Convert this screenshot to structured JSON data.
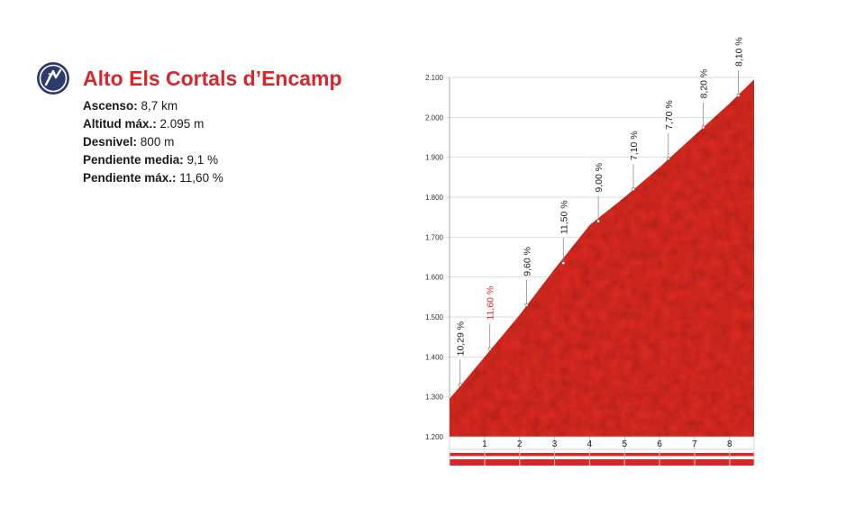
{
  "header": {
    "logo_icon": "cycling-category-badge-icon",
    "title": "Alto Els Cortals d’Encamp"
  },
  "stats": [
    {
      "label": "Ascenso:",
      "value": "8,7 km"
    },
    {
      "label": "Altitud máx.:",
      "value": "2.095 m"
    },
    {
      "label": "Desnivel:",
      "value": "800 m"
    },
    {
      "label": "Pendiente media:",
      "value": "9,1 %"
    },
    {
      "label": "Pendiente máx.:",
      "value": "11,60 %"
    }
  ],
  "colors": {
    "profile_fill": "#d42b22",
    "profile_dark": "#b81d17",
    "title": "#d9262b",
    "highlight_gradient": "#d9262b",
    "gradient_label": "#222222",
    "band": "#d9262b"
  },
  "chart_data": {
    "type": "area",
    "title": "",
    "xlabel": "",
    "ylabel": "",
    "xlim": [
      0,
      8.7
    ],
    "ylim": [
      1200,
      2100
    ],
    "y_ticks": [
      1200,
      1300,
      1400,
      1500,
      1600,
      1700,
      1800,
      1900,
      2000,
      2100
    ],
    "y_tick_labels": [
      "1.200",
      "1.300",
      "1.400",
      "1.500",
      "1.600",
      "1.700",
      "1.800",
      "1.900",
      "2.000",
      "2.100"
    ],
    "x_ticks": [
      1,
      2,
      3,
      4,
      5,
      6,
      7,
      8
    ],
    "x_tick_labels": [
      "1",
      "2",
      "3",
      "4",
      "5",
      "6",
      "7",
      "8"
    ],
    "grid": true,
    "profile": {
      "x": [
        0,
        1,
        2,
        3,
        4,
        5,
        6,
        7,
        8,
        8.7
      ],
      "y": [
        1295,
        1400,
        1505,
        1620,
        1730,
        1800,
        1875,
        1955,
        2035,
        2095
      ]
    },
    "gradients": [
      {
        "label": "10,29 %",
        "km": 0.3,
        "alt": 1330,
        "highlight": false
      },
      {
        "label": "11,60 %",
        "km": 1.15,
        "alt": 1420,
        "highlight": true
      },
      {
        "label": "9,60 %",
        "km": 2.2,
        "alt": 1530,
        "highlight": false
      },
      {
        "label": "11,50 %",
        "km": 3.25,
        "alt": 1635,
        "highlight": false
      },
      {
        "label": "9,00 %",
        "km": 4.25,
        "alt": 1740,
        "highlight": false
      },
      {
        "label": "7,10 %",
        "km": 5.25,
        "alt": 1820,
        "highlight": false
      },
      {
        "label": "7,70 %",
        "km": 6.25,
        "alt": 1897,
        "highlight": false
      },
      {
        "label": "8,20 %",
        "km": 7.25,
        "alt": 1975,
        "highlight": false
      },
      {
        "label": "8,10 %",
        "km": 8.25,
        "alt": 2055,
        "highlight": false
      }
    ]
  }
}
